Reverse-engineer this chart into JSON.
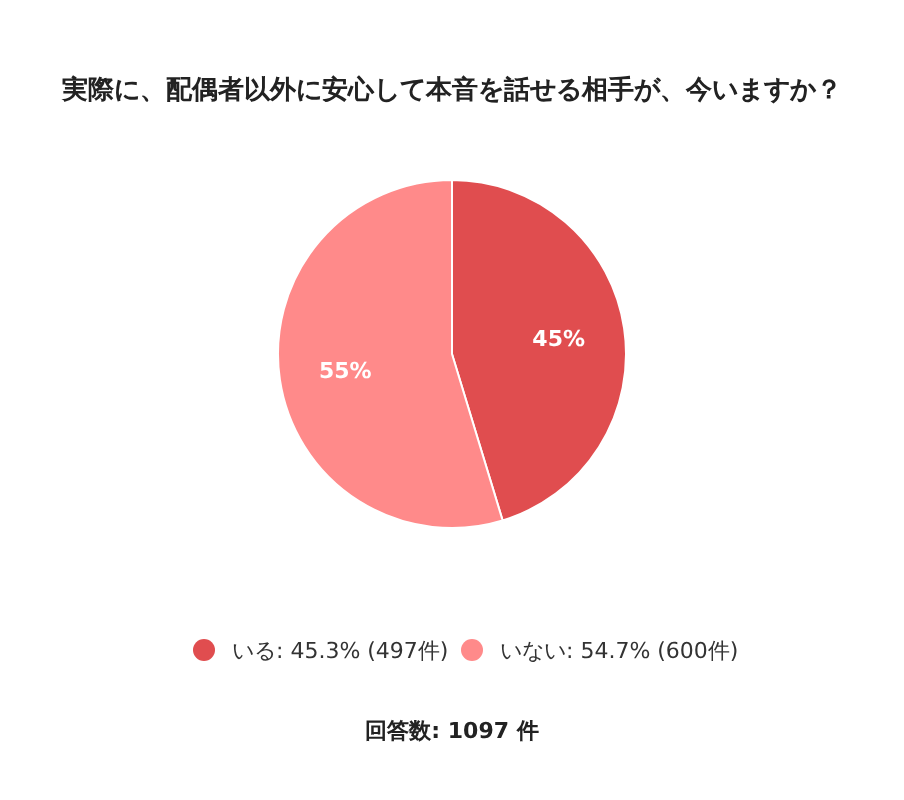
{
  "chart_data": {
    "type": "pie",
    "title": "実際に、配偶者以外に安心して本音を話せる相手が、今いますか？",
    "categories": [
      "いる: 45.3% (497件)",
      "いない: 54.7% (600件)"
    ],
    "values": [
      45.3,
      54.7
    ],
    "colors": [
      "#e04d4f",
      "#ff8a8a"
    ],
    "value_labels": [
      "45%",
      "55%"
    ],
    "legend": "bottom",
    "annotations": [
      "回答数: 1097 件"
    ]
  }
}
